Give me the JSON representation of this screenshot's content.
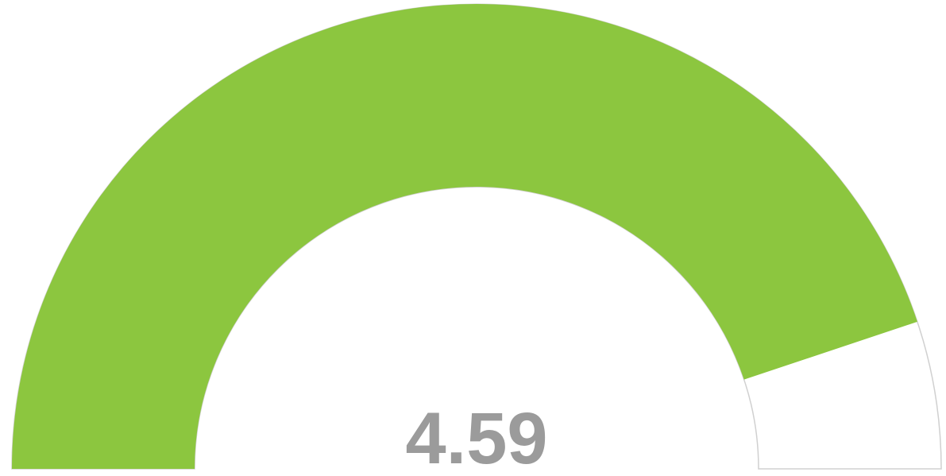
{
  "chart_data": {
    "type": "gauge",
    "value": 4.59,
    "ylim": [
      1,
      5
    ],
    "color": "#8cc63f",
    "track_color": "#ffffff"
  }
}
